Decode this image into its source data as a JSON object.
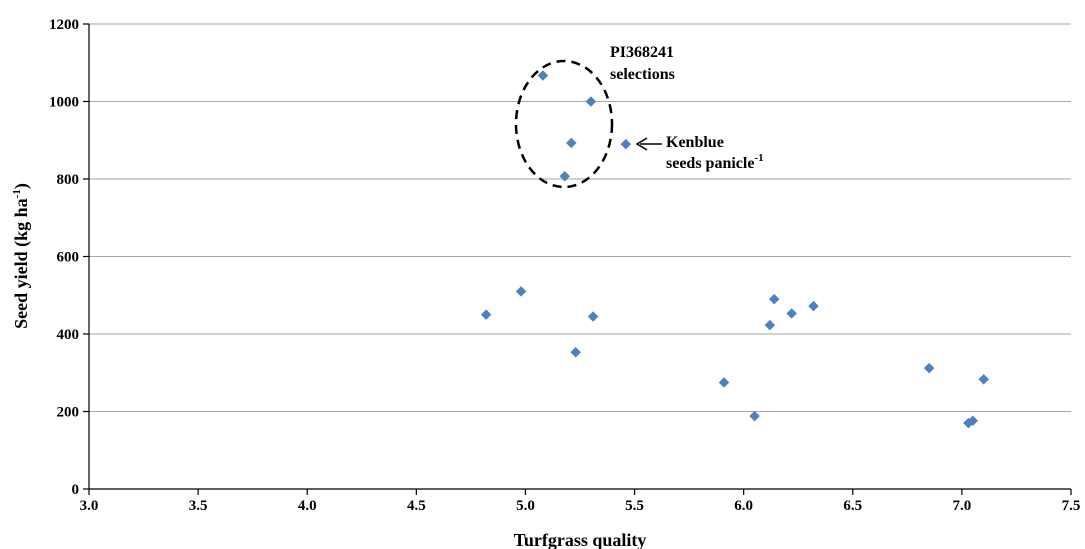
{
  "chart_data": {
    "type": "scatter",
    "title": "",
    "xlabel": "Turfgrass quality",
    "ylabel": {
      "main": "Seed yield (kg ha",
      "sup": "-1",
      "close": ")"
    },
    "xlim": [
      3.0,
      7.5
    ],
    "ylim": [
      0,
      1200
    ],
    "x_ticks": [
      "3.0",
      "3.5",
      "4.0",
      "4.5",
      "5.0",
      "5.5",
      "6.0",
      "6.5",
      "7.0",
      "7.5"
    ],
    "y_ticks": [
      "0",
      "200",
      "400",
      "600",
      "800",
      "1000",
      "1200"
    ],
    "grid": "horizontal",
    "marker_color": "#4F81BD",
    "points": [
      {
        "x": 4.82,
        "y": 450
      },
      {
        "x": 4.98,
        "y": 510
      },
      {
        "x": 5.08,
        "y": 1067
      },
      {
        "x": 5.18,
        "y": 807
      },
      {
        "x": 5.21,
        "y": 893
      },
      {
        "x": 5.23,
        "y": 353
      },
      {
        "x": 5.3,
        "y": 1000
      },
      {
        "x": 5.31,
        "y": 445
      },
      {
        "x": 5.46,
        "y": 890
      },
      {
        "x": 5.91,
        "y": 275
      },
      {
        "x": 6.05,
        "y": 188
      },
      {
        "x": 6.12,
        "y": 423
      },
      {
        "x": 6.14,
        "y": 490
      },
      {
        "x": 6.22,
        "y": 453
      },
      {
        "x": 6.32,
        "y": 472
      },
      {
        "x": 6.85,
        "y": 312
      },
      {
        "x": 7.03,
        "y": 170
      },
      {
        "x": 7.05,
        "y": 176
      },
      {
        "x": 7.1,
        "y": 283
      }
    ],
    "annotations": {
      "selections_line1": "PI368241",
      "selections_line2": "selections",
      "kenblue_line1": "Kenblue",
      "kenblue_line2": "seeds panicle",
      "kenblue_sup": "-1"
    }
  }
}
